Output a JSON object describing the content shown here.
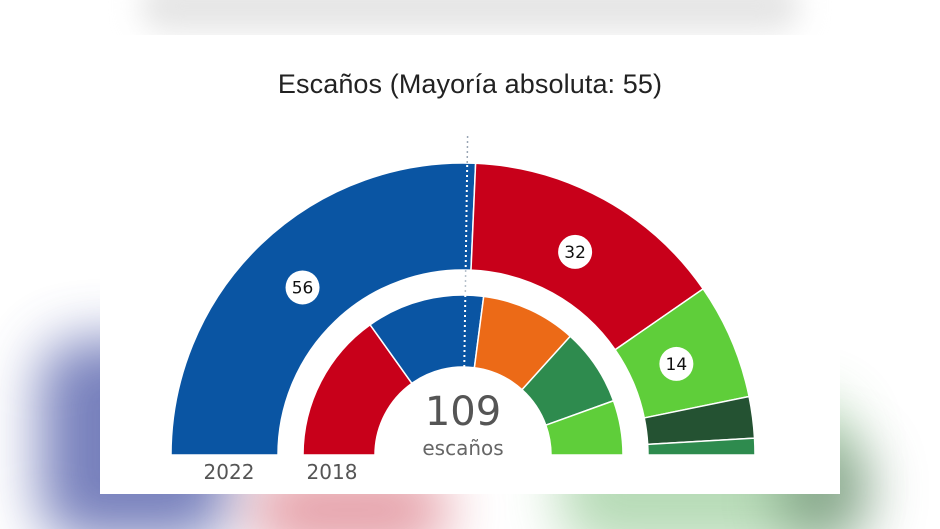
{
  "title": "Escaños (Mayoría absoluta: 55)",
  "center": {
    "total": "109",
    "label": "escaños"
  },
  "rings": {
    "outer_year": "2022",
    "inner_year": "2018"
  },
  "colors": {
    "pp_blue": "#0a55a3",
    "psoe_red": "#c8001a",
    "vox_light_green": "#5fce3a",
    "dark_green": "#245232",
    "medium_green": "#2e8b4e",
    "cs_orange": "#ec6a17",
    "adelante_green": "#2e8b4e",
    "background": "#ffffff"
  },
  "chart_data": {
    "type": "semicircle-donut",
    "title": "Escaños (Mayoría absoluta: 55)",
    "total_seats": 109,
    "majority": 55,
    "center_label": "109 escaños",
    "series": [
      {
        "name": "2022",
        "ring": "outer",
        "segments": [
          {
            "color": "#0a55a3",
            "value": 56,
            "label": "56"
          },
          {
            "color": "#c8001a",
            "value": 32,
            "label": "32"
          },
          {
            "color": "#5fce3a",
            "value": 14,
            "label": "14"
          },
          {
            "color": "#245232",
            "value": 5,
            "label": ""
          },
          {
            "color": "#2e8b4e",
            "value": 2,
            "label": ""
          }
        ]
      },
      {
        "name": "2018",
        "ring": "inner",
        "segments": [
          {
            "color": "#c8001a",
            "value": 33,
            "label": ""
          },
          {
            "color": "#0a55a3",
            "value": 26,
            "label": ""
          },
          {
            "color": "#ec6a17",
            "value": 21,
            "label": ""
          },
          {
            "color": "#2e8b4e",
            "value": 17,
            "label": ""
          },
          {
            "color": "#5fce3a",
            "value": 12,
            "label": ""
          }
        ]
      }
    ],
    "annotations": [
      "Mayoría absoluta: 55 (dotted vertical line at center)"
    ]
  }
}
